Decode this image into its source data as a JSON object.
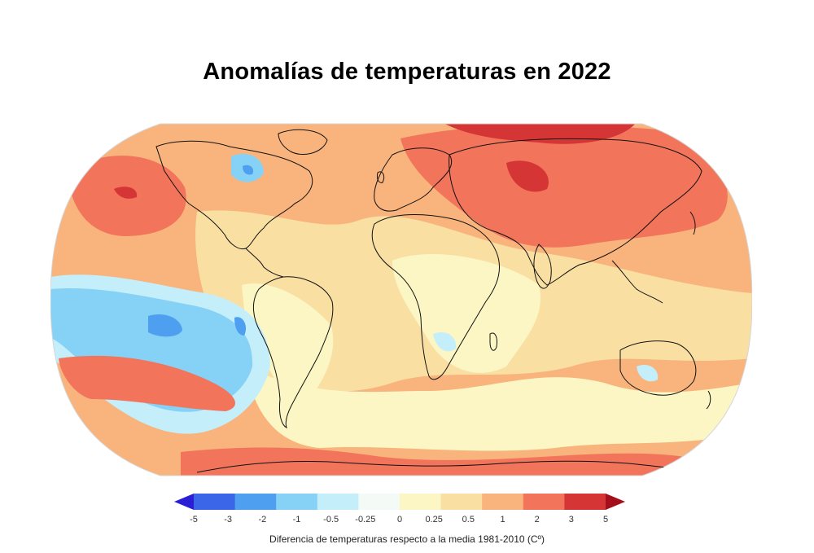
{
  "title": "Anomalías de temperaturas en 2022",
  "legend": {
    "caption": "Diferencia de temperaturas respecto a la media 1981-2010 (Cº)",
    "ticks": [
      "-5",
      "-3",
      "-2",
      "-1",
      "-0.5",
      "-0.25",
      "0",
      "0.25",
      "0.5",
      "1",
      "2",
      "3",
      "5"
    ],
    "bins": [
      {
        "from": "-5",
        "to": "-3",
        "color": "#2b1fd6"
      },
      {
        "from": "-3",
        "to": "-2",
        "color": "#3b66e8"
      },
      {
        "from": "-2",
        "to": "-1",
        "color": "#4f9ff0"
      },
      {
        "from": "-1",
        "to": "-0.5",
        "color": "#86d2f6"
      },
      {
        "from": "-0.5",
        "to": "-0.25",
        "color": "#c4effa"
      },
      {
        "from": "-0.25",
        "to": "0",
        "color": "#f4fbf7"
      },
      {
        "from": "0",
        "to": "0.25",
        "color": "#fcf6c5"
      },
      {
        "from": "0.25",
        "to": "0.5",
        "color": "#fadfa2"
      },
      {
        "from": "0.5",
        "to": "1",
        "color": "#f8b47c"
      },
      {
        "from": "1",
        "to": "2",
        "color": "#f1745b"
      },
      {
        "from": "2",
        "to": "3",
        "color": "#d63535"
      },
      {
        "from": "3",
        "to": "5",
        "color": "#a50f1c"
      }
    ]
  },
  "colors": {
    "ocean_base": "#f8b47c",
    "strong_warm": "#d63535",
    "warm": "#f1745b",
    "mild_warm": "#fadfa2",
    "neutral_warm": "#fcf6c5",
    "cool_light": "#c4effa",
    "cool": "#86d2f6",
    "cold": "#4f9ff0",
    "coastline": "#111111"
  }
}
